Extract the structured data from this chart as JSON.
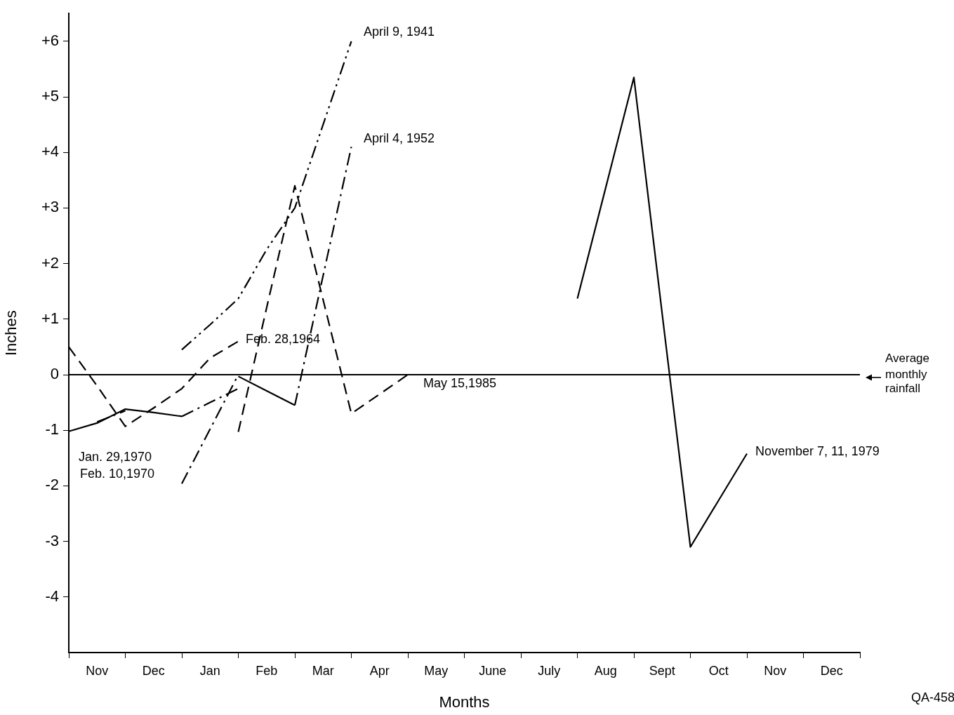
{
  "chart_data": {
    "type": "line",
    "xlabel": "Months",
    "ylabel": "Inches",
    "categories": [
      null,
      "Nov",
      null,
      "Dec",
      null,
      "Jan",
      null,
      "Feb",
      null,
      "Mar",
      null,
      "Apr",
      null,
      "May",
      null,
      "June",
      null,
      "July",
      null,
      "Aug",
      null,
      "Sept",
      null,
      "Oct",
      null,
      "Nov",
      null,
      "Dec",
      null
    ],
    "ylim": [
      -5,
      6.5
    ],
    "yticks": [
      -4,
      -3,
      -2,
      -1,
      0,
      {
        "value": 1,
        "label": "+1"
      },
      {
        "value": 2,
        "label": "+2"
      },
      {
        "value": 3,
        "label": "+3"
      },
      {
        "value": 4,
        "label": "+4"
      },
      {
        "value": 5,
        "label": "+5"
      },
      {
        "value": 6,
        "label": "+6"
      }
    ],
    "grid": false,
    "legend": false,
    "marker": "none",
    "series": [
      {
        "color": "#000000",
        "line_style": "solid",
        "values": [
          -1.02,
          -0.87,
          -0.62,
          -0.68,
          -0.75,
          null,
          null,
          null,
          null,
          null,
          null,
          null,
          null,
          null,
          null,
          null,
          null,
          null,
          null,
          null,
          null,
          null,
          null,
          null,
          null,
          null,
          null,
          null,
          null
        ]
      },
      {
        "color": "#000000",
        "line_style": "solid",
        "values": [
          null,
          null,
          null,
          null,
          null,
          null,
          -0.03,
          -0.29,
          -0.55,
          null,
          null,
          null,
          null,
          null,
          null,
          null,
          null,
          null,
          null,
          null,
          null,
          null,
          null,
          null,
          null,
          null,
          null,
          null,
          null
        ]
      },
      {
        "color": "#000000",
        "line_style": "solid",
        "values": [
          null,
          null,
          null,
          null,
          null,
          null,
          null,
          null,
          null,
          null,
          null,
          null,
          null,
          null,
          null,
          null,
          null,
          null,
          1.37,
          3.36,
          5.35,
          1.1,
          -3.1,
          -2.26,
          -1.42,
          null,
          null,
          null,
          null
        ]
      },
      {
        "color": "#000000",
        "line_style": "dashdot",
        "values": [
          null,
          -0.85,
          -0.65,
          null,
          null,
          null,
          null,
          null,
          null,
          null,
          null,
          null,
          null,
          null,
          null,
          null,
          null,
          null,
          null,
          null,
          null,
          null,
          null,
          null,
          null,
          null,
          null,
          null,
          null
        ]
      },
      {
        "color": "#000000",
        "line_style": "dashdot",
        "values": [
          null,
          null,
          null,
          null,
          -0.75,
          -0.5,
          -0.25,
          null,
          null,
          null,
          null,
          null,
          null,
          null,
          null,
          null,
          null,
          null,
          null,
          null,
          null,
          null,
          null,
          null,
          null,
          null,
          null,
          null,
          null
        ]
      },
      {
        "color": "#000000",
        "line_style": "dashdot",
        "values": [
          null,
          null,
          null,
          null,
          -1.96,
          -0.98,
          0,
          null,
          null,
          null,
          null,
          null,
          null,
          null,
          null,
          null,
          null,
          null,
          null,
          null,
          null,
          null,
          null,
          null,
          null,
          null,
          null,
          null,
          null
        ]
      },
      {
        "color": "#000000",
        "line_style": "dashdot",
        "values": [
          null,
          null,
          null,
          null,
          null,
          null,
          null,
          null,
          -0.55,
          1.78,
          4.1,
          null,
          null,
          null,
          null,
          null,
          null,
          null,
          null,
          null,
          null,
          null,
          null,
          null,
          null,
          null,
          null,
          null,
          null
        ]
      },
      {
        "color": "#000000",
        "line_style": "dashdotdot",
        "values": [
          null,
          null,
          null,
          null,
          0.45,
          0.9,
          1.37,
          2.25,
          3,
          4.5,
          6,
          null,
          null,
          null,
          null,
          null,
          null,
          null,
          null,
          null,
          null,
          null,
          null,
          null,
          null,
          null,
          null,
          null,
          null
        ]
      },
      {
        "color": "#000000",
        "line_style": "dashed",
        "values": [
          0.5,
          -0.2,
          -0.93,
          -0.6,
          -0.25,
          0.3,
          0.6,
          null,
          null,
          null,
          null,
          null,
          null,
          null,
          null,
          null,
          null,
          null,
          null,
          null,
          null,
          null,
          null,
          null,
          null,
          null,
          null,
          null,
          null
        ]
      },
      {
        "color": "#000000",
        "line_style": "dashed",
        "values": [
          null,
          null,
          null,
          null,
          null,
          null,
          -1.03,
          1.2,
          3.4,
          1.35,
          -0.7,
          -0.35,
          0,
          null,
          null,
          null,
          null,
          null,
          null,
          null,
          null,
          null,
          null,
          null,
          null,
          null,
          null,
          null,
          null
        ]
      }
    ],
    "ref_lines": [
      {
        "axis": "y",
        "value": 0,
        "label": "Average monthly rainfall",
        "color": "#000000"
      }
    ],
    "annotations": [
      "April 9, 1941",
      "April 4, 1952",
      "Feb. 28,1964",
      "May 15,1985",
      "November 7, 11, 1979",
      "Jan. 29,1970",
      "Feb. 10,1970",
      "QA-458"
    ]
  }
}
